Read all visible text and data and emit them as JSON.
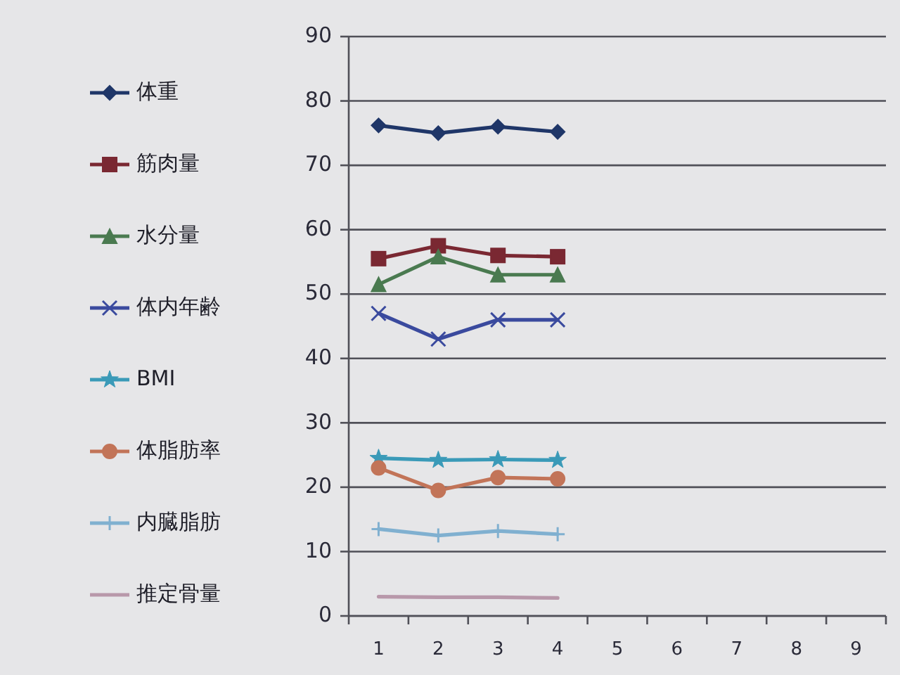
{
  "chart_data": {
    "type": "line",
    "categories": [
      "1",
      "2",
      "3",
      "4",
      "5",
      "6",
      "7",
      "8",
      "9"
    ],
    "series": [
      {
        "name": "体重",
        "color": "#1f3668",
        "marker": "diamond",
        "values": [
          76.2,
          75.0,
          76.0,
          75.2,
          null,
          null,
          null,
          null,
          null
        ]
      },
      {
        "name": "筋肉量",
        "color": "#7a2832",
        "marker": "square",
        "values": [
          55.5,
          57.5,
          56.0,
          55.8,
          null,
          null,
          null,
          null,
          null
        ]
      },
      {
        "name": "水分量",
        "color": "#4a7a50",
        "marker": "triangle",
        "values": [
          51.5,
          55.8,
          53.0,
          53.0,
          null,
          null,
          null,
          null,
          null
        ]
      },
      {
        "name": "体内年齢",
        "color": "#3a4a9e",
        "marker": "cross",
        "values": [
          47.0,
          43.0,
          46.0,
          46.0,
          null,
          null,
          null,
          null,
          null
        ]
      },
      {
        "name": "BMI",
        "color": "#3a9ab8",
        "marker": "star",
        "values": [
          24.5,
          24.2,
          24.3,
          24.2,
          null,
          null,
          null,
          null,
          null
        ]
      },
      {
        "name": "体脂肪率",
        "color": "#c27458",
        "marker": "circle",
        "values": [
          23.0,
          19.5,
          21.5,
          21.3,
          null,
          null,
          null,
          null,
          null
        ]
      },
      {
        "name": "内臓脂肪",
        "color": "#80b0d0",
        "marker": "plus",
        "values": [
          13.5,
          12.5,
          13.2,
          12.7,
          null,
          null,
          null,
          null,
          null
        ]
      },
      {
        "name": "推定骨量",
        "color": "#b898aa",
        "marker": "none",
        "values": [
          3.0,
          2.9,
          2.9,
          2.8,
          null,
          null,
          null,
          null,
          null
        ]
      }
    ],
    "ylim": [
      0,
      90
    ],
    "yticks": [
      0,
      10,
      20,
      30,
      40,
      50,
      60,
      70,
      80,
      90
    ],
    "grid": "y",
    "legend": "left"
  }
}
